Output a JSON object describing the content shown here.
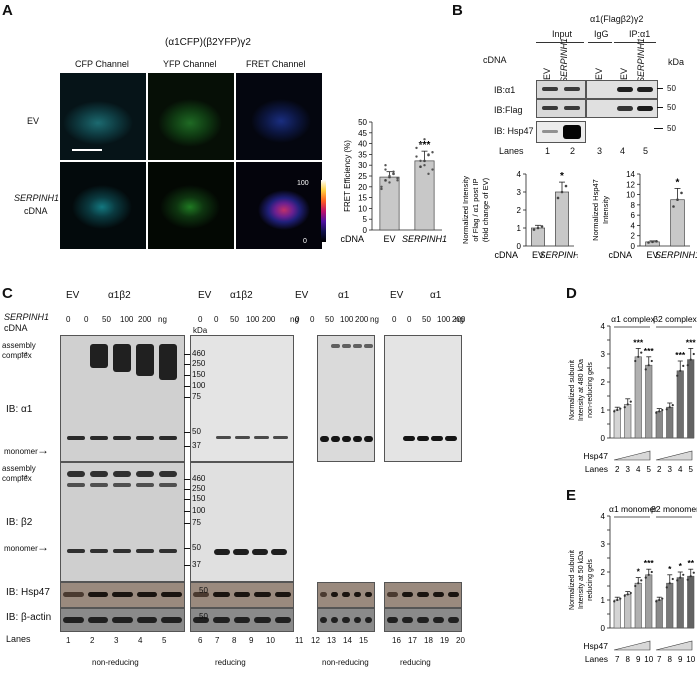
{
  "panel_letters": {
    "a": "A",
    "b": "B",
    "c": "C",
    "d": "D",
    "e": "E"
  },
  "panelA": {
    "title": "(α1CFP)(β2YFP)γ2",
    "channels": [
      "CFP Channel",
      "YFP Channel",
      "FRET Channel"
    ],
    "row_labels": {
      "ev": "EV",
      "serpinh1": "SERPINH1",
      "cdna": "cDNA"
    },
    "colorbar": {
      "max": "100",
      "min": "0"
    },
    "colors": {
      "cfp": "#1fb8c4",
      "yfp": "#3ab03a",
      "fret": "#2a4fd0"
    }
  },
  "panelB": {
    "top_label": "α1(Flagβ2)γ2",
    "input_label": "Input",
    "igg_label": "IgG",
    "ip_label": "IP:α1",
    "cdna_label": "cDNA",
    "lane_cdna": [
      "EV",
      "SERPINH1",
      "EV",
      "EV",
      "SERPINH1"
    ],
    "kda": "kDa",
    "ib_labels": [
      "IB:α1",
      "IB:Flag",
      "IB: Hsp47"
    ],
    "markers": [
      "50",
      "50",
      "50"
    ],
    "lanes_label": "Lanes",
    "lanes": [
      "1",
      "2",
      "3",
      "4",
      "5"
    ]
  },
  "panelC": {
    "gene": "SERPINH1",
    "cdna": "cDNA",
    "group_headers": [
      {
        "ev": "EV",
        "label": "α1β2"
      },
      {
        "ev": "EV",
        "label": "α1β2"
      },
      {
        "ev": "EV",
        "label": "α1"
      },
      {
        "ev": "EV",
        "label": "α1"
      }
    ],
    "doses": [
      "0",
      "0",
      "50",
      "100",
      "200"
    ],
    "ng": "ng",
    "kda": "kDa",
    "mw_top": [
      "460",
      "250",
      "150",
      "100",
      "75",
      "50",
      "37"
    ],
    "mw_mid": [
      "460",
      "250",
      "150",
      "100",
      "75",
      "50",
      "37"
    ],
    "mw_hsp": "50",
    "mw_actin": "50",
    "row_labels": {
      "assembly": "assembly",
      "complex": "complex",
      "monomer": "monomer",
      "ib_a1": "IB: α1",
      "ib_b2": "IB: β2",
      "ib_hsp47": "IB: Hsp47",
      "ib_actin": "IB: β-actin"
    },
    "lanes_label": "Lanes",
    "lanes": [
      [
        "1",
        "2",
        "3",
        "4",
        "5"
      ],
      [
        "6",
        "7",
        "8",
        "9",
        "10"
      ],
      [
        "11",
        "12",
        "13",
        "14",
        "15"
      ],
      [
        "16",
        "17",
        "18",
        "19",
        "20"
      ]
    ],
    "conditions": [
      "non-reducing",
      "reducing",
      "non-reducing",
      "reducing"
    ]
  },
  "panelD": {
    "lanes_label": "Lanes",
    "hsp47_label": "Hsp47"
  },
  "panelE": {
    "lanes_label": "Lanes",
    "hsp47_label": "Hsp47"
  },
  "chart_data": [
    {
      "id": "A-fret",
      "type": "bar",
      "xlabel": "cDNA",
      "ylabel": "FRET Efficiency (%)",
      "categories": [
        "EV",
        "SERPINH1"
      ],
      "values": [
        24.5,
        32.0
      ],
      "errors": [
        2.5,
        4.5
      ],
      "significance": [
        "",
        "***"
      ],
      "ylim": [
        0,
        50
      ],
      "yticks": [
        0,
        5,
        10,
        15,
        20,
        25,
        30,
        35,
        40,
        45,
        50
      ]
    },
    {
      "id": "B-flag",
      "type": "bar",
      "xlabel": "cDNA",
      "ylabel": "Normalized Intensity of Flag / α1 post IP (fold change of EV)",
      "categories": [
        "EV",
        "SERPINH1"
      ],
      "values": [
        1.0,
        3.0
      ],
      "errors": [
        0.15,
        0.55
      ],
      "significance": [
        "",
        "*"
      ],
      "ylim": [
        0,
        4
      ],
      "yticks": [
        0,
        1,
        2,
        3,
        4
      ]
    },
    {
      "id": "B-hsp47",
      "type": "bar",
      "xlabel": "cDNA",
      "ylabel": "Normalized Hsp47 Intensity",
      "categories": [
        "EV",
        "SERPINH1"
      ],
      "values": [
        0.8,
        9.0
      ],
      "errors": [
        0.2,
        2.2
      ],
      "significance": [
        "",
        "*"
      ],
      "ylim": [
        0,
        14
      ],
      "yticks": [
        0,
        2,
        4,
        6,
        8,
        10,
        12,
        14
      ]
    },
    {
      "id": "D",
      "type": "bar",
      "ylabel": "Normalized subunit Intensity at 480 kDa non-reducing gels",
      "groups": [
        "α1 complex",
        "β2 complex"
      ],
      "categories": [
        "2",
        "3",
        "4",
        "5"
      ],
      "series": [
        {
          "name": "α1 complex",
          "values": [
            1.0,
            1.2,
            2.9,
            2.6
          ],
          "errors": [
            0.1,
            0.2,
            0.3,
            0.3
          ],
          "significance": [
            "",
            "",
            "***",
            "***"
          ]
        },
        {
          "name": "β2 complex",
          "values": [
            0.95,
            1.1,
            2.4,
            2.8
          ],
          "errors": [
            0.1,
            0.15,
            0.35,
            0.4
          ],
          "significance": [
            "",
            "",
            "***",
            "***"
          ]
        }
      ],
      "ylim": [
        0,
        4
      ],
      "yticks": [
        0,
        0.5,
        1,
        1.5,
        2,
        2.5,
        3,
        3.5,
        4
      ],
      "ytick_labels": [
        "0",
        "",
        "1",
        "",
        "2",
        "",
        "3",
        "",
        "4"
      ]
    },
    {
      "id": "E",
      "type": "bar",
      "ylabel": "Normalized subunit Intensity at 50 kDa reducing gels",
      "groups": [
        "α1 monomer",
        "β2 monomer"
      ],
      "categories": [
        "7",
        "8",
        "9",
        "10"
      ],
      "series": [
        {
          "name": "α1 monomer",
          "values": [
            1.0,
            1.2,
            1.6,
            1.9
          ],
          "errors": [
            0.1,
            0.1,
            0.2,
            0.2
          ],
          "significance": [
            "",
            "",
            "*",
            "***"
          ]
        },
        {
          "name": "β2 monomer",
          "values": [
            1.0,
            1.6,
            1.8,
            1.85
          ],
          "errors": [
            0.1,
            0.3,
            0.2,
            0.25
          ],
          "significance": [
            "",
            "*",
            "*",
            "**"
          ]
        }
      ],
      "ylim": [
        0,
        4
      ],
      "yticks": [
        0,
        0.5,
        1,
        1.5,
        2,
        2.5,
        3,
        3.5,
        4
      ],
      "ytick_labels": [
        "0",
        "",
        "1",
        "",
        "2",
        "",
        "3",
        "",
        "4"
      ]
    }
  ]
}
